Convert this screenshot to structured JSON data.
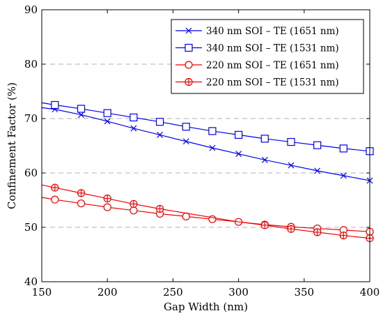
{
  "chart_data": {
    "type": "line",
    "xlabel": "Gap Width (nm)",
    "ylabel": "Confinement Factor (%)",
    "xlim": [
      150,
      400
    ],
    "ylim": [
      40,
      90
    ],
    "xticks": [
      150,
      200,
      250,
      300,
      350,
      400
    ],
    "yticks": [
      40,
      50,
      60,
      70,
      80,
      90
    ],
    "grid": "horizontal dashed",
    "legend_position": "top-right",
    "series": [
      {
        "name": "340 nm SOI – TE (1651 nm)",
        "color": "#0000ee",
        "marker": "x",
        "line_x": [
          150,
          160,
          180,
          200,
          220,
          240,
          260,
          280,
          300,
          320,
          340,
          360,
          380,
          400
        ],
        "line_y": [
          72.0,
          71.7,
          70.7,
          69.5,
          68.2,
          67.0,
          65.8,
          64.6,
          63.5,
          62.4,
          61.4,
          60.4,
          59.5,
          58.6
        ],
        "marker_x": [
          160,
          180,
          200,
          220,
          240,
          260,
          280,
          300,
          320,
          340,
          360,
          380,
          400
        ],
        "marker_y": [
          71.7,
          70.7,
          69.5,
          68.2,
          67.0,
          65.8,
          64.6,
          63.5,
          62.4,
          61.4,
          60.4,
          59.5,
          58.6
        ]
      },
      {
        "name": "340 nm SOI – TE (1531 nm)",
        "color": "#0000ee",
        "marker": "square",
        "line_x": [
          150,
          160,
          180,
          200,
          220,
          240,
          260,
          280,
          300,
          320,
          340,
          360,
          380,
          400
        ],
        "line_y": [
          72.9,
          72.5,
          71.8,
          71.0,
          70.2,
          69.4,
          68.5,
          67.7,
          67.0,
          66.3,
          65.7,
          65.1,
          64.5,
          64.0
        ],
        "marker_x": [
          160,
          180,
          200,
          220,
          240,
          260,
          280,
          300,
          320,
          340,
          360,
          380,
          400
        ],
        "marker_y": [
          72.5,
          71.8,
          71.0,
          70.2,
          69.4,
          68.5,
          67.7,
          67.0,
          66.3,
          65.7,
          65.1,
          64.5,
          64.0
        ]
      },
      {
        "name": "220 nm SOI – TE (1651 nm)",
        "color": "#ee0000",
        "marker": "circle",
        "line_x": [
          150,
          160,
          180,
          200,
          220,
          240,
          260,
          280,
          300,
          320,
          340,
          360,
          380,
          400
        ],
        "line_y": [
          55.5,
          55.1,
          54.4,
          53.7,
          53.1,
          52.5,
          52.0,
          51.5,
          51.0,
          50.5,
          50.1,
          49.8,
          49.5,
          49.2
        ],
        "marker_x": [
          160,
          180,
          200,
          220,
          240,
          260,
          280,
          300,
          320,
          340,
          360,
          380,
          400
        ],
        "marker_y": [
          55.1,
          54.4,
          53.7,
          53.1,
          52.5,
          52.0,
          51.5,
          51.0,
          50.5,
          50.1,
          49.8,
          49.5,
          49.2
        ]
      },
      {
        "name": "220 nm SOI – TE (1531 nm)",
        "color": "#ee0000",
        "marker": "oplus",
        "line_x": [
          150,
          160,
          180,
          200,
          220,
          240,
          300,
          320,
          340,
          360,
          380,
          400
        ],
        "line_y": [
          57.8,
          57.3,
          56.3,
          55.3,
          54.3,
          53.4,
          51.0,
          50.4,
          49.7,
          49.1,
          48.5,
          48.0
        ],
        "marker_x": [
          160,
          180,
          200,
          220,
          240,
          320,
          340,
          360,
          380,
          400
        ],
        "marker_y": [
          57.3,
          56.3,
          55.3,
          54.3,
          53.4,
          50.4,
          49.7,
          49.1,
          48.5,
          48.0
        ]
      }
    ]
  }
}
